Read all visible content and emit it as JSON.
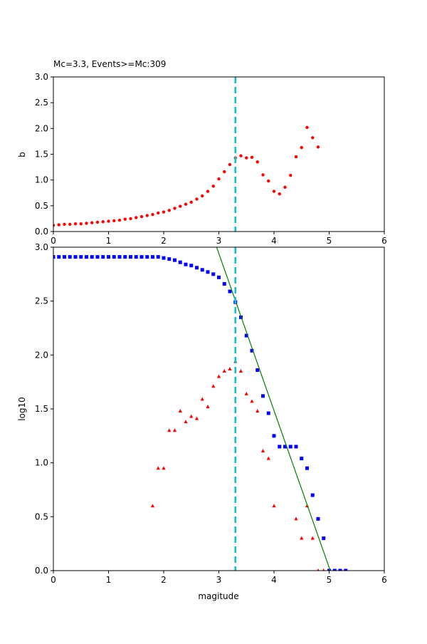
{
  "chart_data": [
    {
      "type": "scatter",
      "title": "Mc=3.3, Events>=Mc:309",
      "xlabel": "",
      "ylabel": "b",
      "xlim": [
        0,
        6
      ],
      "ylim": [
        0,
        3.0
      ],
      "xticks": [
        "0",
        "1",
        "2",
        "3",
        "4",
        "5",
        "6"
      ],
      "yticks": [
        "0.0",
        "0.5",
        "1.0",
        "1.5",
        "2.0",
        "2.5",
        "3.0"
      ],
      "mc_line": {
        "x": 3.3,
        "color": "#17becf"
      },
      "series": [
        {
          "marker": "circle",
          "color": "#ff0000",
          "x": [
            0.0,
            0.1,
            0.2,
            0.3,
            0.4,
            0.5,
            0.6,
            0.7,
            0.8,
            0.9,
            1.0,
            1.1,
            1.2,
            1.3,
            1.4,
            1.5,
            1.6,
            1.7,
            1.8,
            1.9,
            2.0,
            2.1,
            2.2,
            2.3,
            2.4,
            2.5,
            2.6,
            2.7,
            2.8,
            2.9,
            3.0,
            3.1,
            3.2,
            3.3,
            3.4,
            3.5,
            3.6,
            3.7,
            3.8,
            3.9,
            4.0,
            4.1,
            4.2,
            4.3,
            4.4,
            4.5,
            4.6,
            4.7,
            4.8
          ],
          "y": [
            0.12,
            0.13,
            0.14,
            0.14,
            0.15,
            0.15,
            0.16,
            0.17,
            0.18,
            0.19,
            0.2,
            0.21,
            0.22,
            0.24,
            0.25,
            0.27,
            0.29,
            0.31,
            0.33,
            0.36,
            0.38,
            0.41,
            0.45,
            0.49,
            0.53,
            0.57,
            0.63,
            0.69,
            0.78,
            0.88,
            1.02,
            1.16,
            1.3,
            1.43,
            1.47,
            1.43,
            1.44,
            1.35,
            1.1,
            0.98,
            0.78,
            0.73,
            0.86,
            1.09,
            1.45,
            1.63,
            2.02,
            1.82,
            1.64
          ]
        }
      ]
    },
    {
      "type": "scatter",
      "title": "",
      "xlabel": "magitude",
      "ylabel": "log10",
      "xlim": [
        0,
        6
      ],
      "ylim": [
        0,
        3.0
      ],
      "xticks": [
        "0",
        "1",
        "2",
        "3",
        "4",
        "5",
        "6"
      ],
      "yticks": [
        "0.0",
        "0.5",
        "1.0",
        "1.5",
        "2.0",
        "2.5",
        "3.0"
      ],
      "mc_line": {
        "x": 3.3,
        "color": "#17becf"
      },
      "fit_line": {
        "color": "#008000",
        "x": [
          2.96,
          5.02
        ],
        "y": [
          3.0,
          0.0
        ]
      },
      "series": [
        {
          "marker": "square",
          "color": "#0000ff",
          "x": [
            0.0,
            0.1,
            0.2,
            0.3,
            0.4,
            0.5,
            0.6,
            0.7,
            0.8,
            0.9,
            1.0,
            1.1,
            1.2,
            1.3,
            1.4,
            1.5,
            1.6,
            1.7,
            1.8,
            1.9,
            2.0,
            2.1,
            2.2,
            2.3,
            2.4,
            2.5,
            2.6,
            2.7,
            2.8,
            2.9,
            3.0,
            3.1,
            3.2,
            3.3,
            3.4,
            3.5,
            3.6,
            3.7,
            3.8,
            3.9,
            4.0,
            4.1,
            4.2,
            4.3,
            4.4,
            4.5,
            4.6,
            4.7,
            4.8,
            4.9,
            5.0,
            5.1,
            5.2,
            5.3
          ],
          "y": [
            2.91,
            2.91,
            2.91,
            2.91,
            2.91,
            2.91,
            2.91,
            2.91,
            2.91,
            2.91,
            2.91,
            2.91,
            2.91,
            2.91,
            2.91,
            2.91,
            2.91,
            2.91,
            2.91,
            2.91,
            2.9,
            2.89,
            2.88,
            2.86,
            2.84,
            2.83,
            2.81,
            2.79,
            2.77,
            2.75,
            2.72,
            2.66,
            2.59,
            2.49,
            2.35,
            2.18,
            2.04,
            1.86,
            1.62,
            1.46,
            1.25,
            1.15,
            1.15,
            1.15,
            1.15,
            1.04,
            0.95,
            0.7,
            0.48,
            0.3,
            0.0,
            0.0,
            0.0,
            0.0
          ]
        },
        {
          "marker": "triangle",
          "color": "#ff0000",
          "x": [
            1.8,
            1.9,
            2.0,
            2.1,
            2.2,
            2.3,
            2.4,
            2.5,
            2.6,
            2.7,
            2.8,
            2.9,
            3.0,
            3.1,
            3.2,
            3.3,
            3.4,
            3.5,
            3.6,
            3.7,
            3.8,
            3.9,
            4.0,
            4.4,
            4.5,
            4.6,
            4.7,
            4.8,
            4.9
          ],
          "y": [
            0.6,
            0.95,
            0.95,
            1.3,
            1.3,
            1.48,
            1.38,
            1.43,
            1.41,
            1.59,
            1.52,
            1.71,
            1.8,
            1.85,
            1.87,
            1.94,
            1.85,
            1.64,
            1.57,
            1.48,
            1.11,
            1.04,
            0.6,
            0.48,
            0.3,
            0.6,
            0.3,
            0.0,
            0.0
          ]
        }
      ]
    }
  ]
}
